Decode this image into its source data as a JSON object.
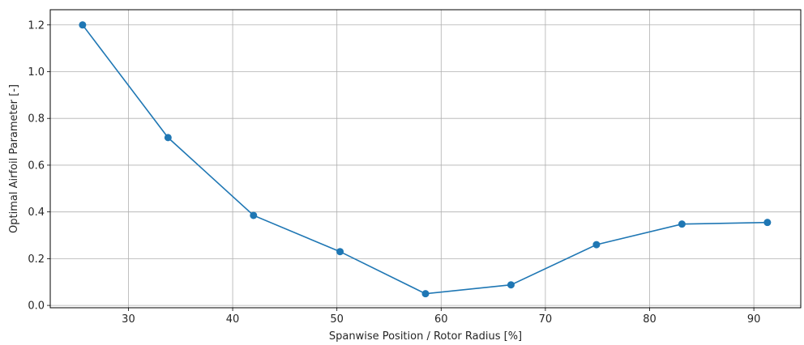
{
  "chart_data": {
    "type": "line",
    "title": "",
    "xlabel": "Spanwise Position / Rotor Radius [%]",
    "ylabel": "Optimal Airfoil Parameter [-]",
    "xlim": [
      22.5,
      94.5
    ],
    "ylim": [
      -0.01,
      1.265
    ],
    "xticks": [
      30,
      40,
      50,
      60,
      70,
      80,
      90
    ],
    "yticks": [
      0.0,
      0.2,
      0.4,
      0.6,
      0.8,
      1.0,
      1.2
    ],
    "xtick_labels": [
      "30",
      "40",
      "50",
      "60",
      "70",
      "80",
      "90"
    ],
    "ytick_labels": [
      "0.0",
      "0.2",
      "0.4",
      "0.6",
      "0.8",
      "1.0",
      "1.2"
    ],
    "grid": true,
    "series": [
      {
        "color": "#1f77b4",
        "marker": "circle",
        "x": [
          25.6,
          33.8,
          42.0,
          50.3,
          58.5,
          66.7,
          74.9,
          83.1,
          91.3
        ],
        "y": [
          1.2,
          0.718,
          0.385,
          0.23,
          0.05,
          0.088,
          0.26,
          0.348,
          0.355
        ]
      }
    ]
  }
}
